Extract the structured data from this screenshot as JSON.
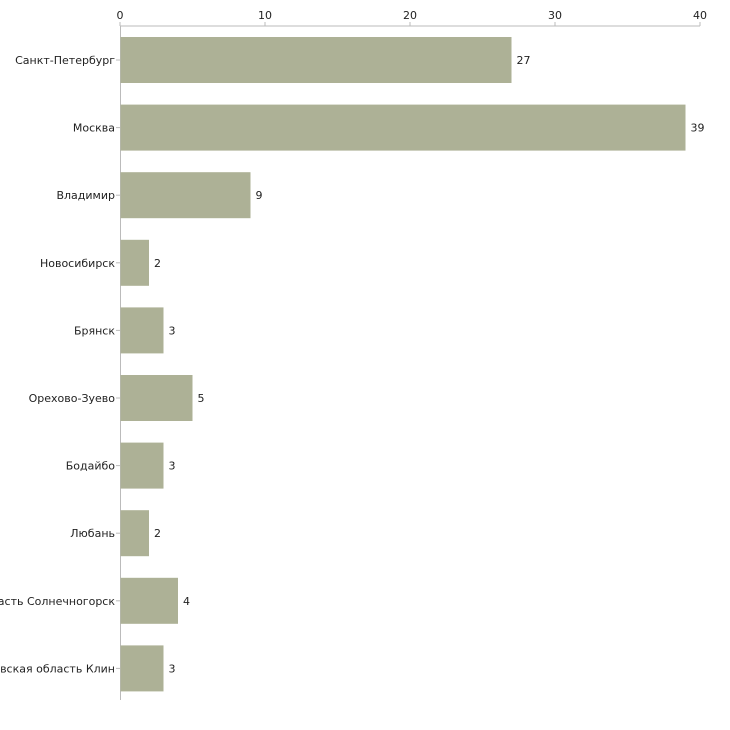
{
  "chart_data": {
    "type": "bar",
    "orientation": "horizontal",
    "title": "",
    "xlabel": "",
    "ylabel": "",
    "xlim": [
      0,
      40
    ],
    "ticks": [
      0,
      10,
      20,
      30,
      40
    ],
    "tick_labels": [
      "0",
      "10",
      "20",
      "30",
      "40"
    ],
    "categories": [
      "Санкт-Петербург",
      "Москва",
      "Владимир",
      "Новосибирск",
      "Брянск",
      "Орехово-Зуево",
      "Бодайбо",
      "Любань",
      "Московская область Солнечногорск",
      "Московская область Клин"
    ],
    "values": [
      27,
      39,
      9,
      2,
      3,
      5,
      3,
      2,
      4,
      3
    ],
    "value_labels": [
      "27",
      "39",
      "9",
      "2",
      "3",
      "5",
      "3",
      "2",
      "4",
      "3"
    ],
    "grid": false,
    "colors": {
      "bar": "#adb196",
      "axis": "#bbbbbb",
      "text": "#222222"
    }
  }
}
